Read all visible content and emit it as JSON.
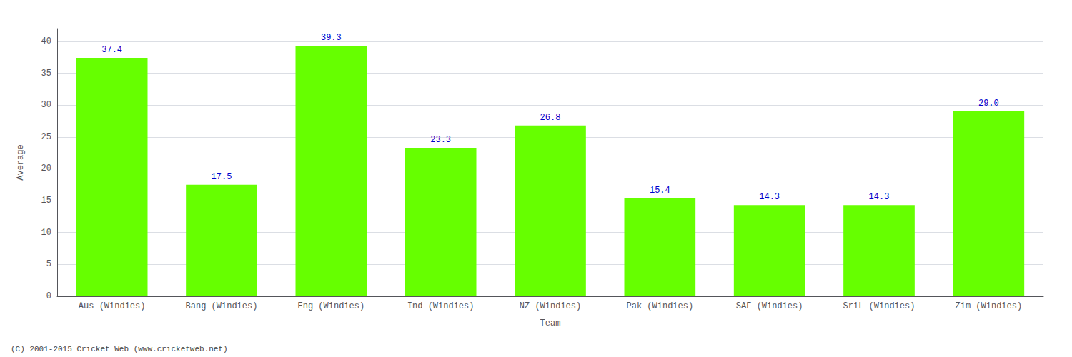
{
  "chart_data": {
    "type": "bar",
    "xlabel": "Team",
    "ylabel": "Average",
    "categories": [
      "Aus (Windies)",
      "Bang (Windies)",
      "Eng (Windies)",
      "Ind (Windies)",
      "NZ (Windies)",
      "Pak (Windies)",
      "SAF (Windies)",
      "SriL (Windies)",
      "Zim (Windies)"
    ],
    "values": [
      37.4,
      17.5,
      39.3,
      23.3,
      26.8,
      15.4,
      14.3,
      14.3,
      29.0
    ],
    "value_labels": [
      "37.4",
      "17.5",
      "39.3",
      "23.3",
      "26.8",
      "15.4",
      "14.3",
      "14.3",
      "29.0"
    ],
    "data_labels": true,
    "color": "#66ff00",
    "ylim": [
      0,
      42
    ],
    "yticks": [
      0,
      5,
      10,
      15,
      20,
      25,
      30,
      35,
      40
    ],
    "grid": true,
    "annotations": [
      "(C) 2001-2015 Cricket Web (www.cricketweb.net)"
    ]
  }
}
